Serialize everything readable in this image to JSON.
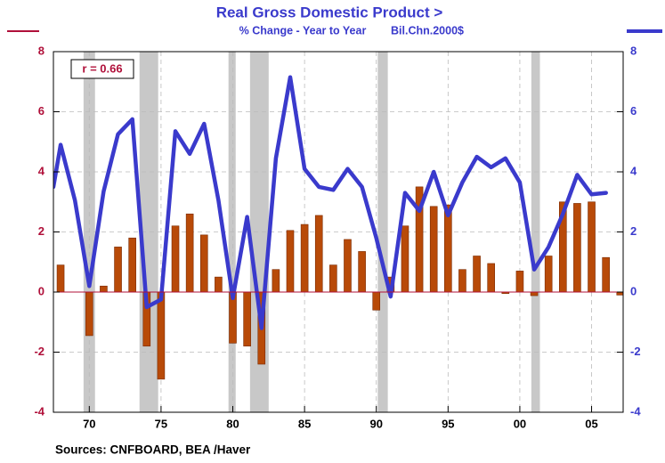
{
  "chart_data": {
    "type": "combo",
    "title": "Real Gross Domestic Product  >",
    "subtitle": [
      "% Change - Year to Year",
      "Bil.Chn.2000$"
    ],
    "annotation": "r = 0.66",
    "source": "Sources:  CNFBOARD, BEA /Haver",
    "xlim": [
      1967.5,
      2007.2
    ],
    "xticks": [
      {
        "value": 1970,
        "label": "70"
      },
      {
        "value": 1975,
        "label": "75"
      },
      {
        "value": 1980,
        "label": "80"
      },
      {
        "value": 1985,
        "label": "85"
      },
      {
        "value": 1990,
        "label": "90"
      },
      {
        "value": 1995,
        "label": "95"
      },
      {
        "value": 2000,
        "label": "00"
      },
      {
        "value": 2005,
        "label": "05"
      }
    ],
    "ylim": [
      -4,
      8
    ],
    "yticks": [
      -4,
      -2,
      0,
      2,
      4,
      6,
      8
    ],
    "y2lim": [
      -4,
      8
    ],
    "y2ticks": [
      -4,
      -2,
      0,
      2,
      4,
      6,
      8
    ],
    "grid": true,
    "shaded_periods": [
      [
        1969.6,
        1970.4
      ],
      [
        1973.5,
        1974.8
      ],
      [
        1979.7,
        1980.2
      ],
      [
        1981.2,
        1982.5
      ],
      [
        1990.1,
        1990.8
      ],
      [
        2000.8,
        2001.4
      ]
    ],
    "shade_color": "#c8c8c8",
    "series": [
      {
        "type": "bar",
        "axis": "y",
        "color": "#b84a08",
        "axis_color": "#b0103a",
        "x": [
          1968,
          1969,
          1970,
          1971,
          1972,
          1973,
          1974,
          1975,
          1976,
          1977,
          1978,
          1979,
          1980,
          1981,
          1982,
          1983,
          1984,
          1985,
          1986,
          1987,
          1988,
          1989,
          1990,
          1991,
          1992,
          1993,
          1994,
          1995,
          1996,
          1997,
          1998,
          1999,
          2000,
          2001,
          2002,
          2003,
          2004,
          2005,
          2006,
          2007
        ],
        "values": [
          0.9,
          0,
          -1.45,
          0.2,
          1.5,
          1.8,
          -1.8,
          -2.9,
          2.2,
          2.6,
          1.9,
          0.5,
          -1.7,
          -1.8,
          -2.4,
          0.75,
          2.05,
          2.25,
          2.55,
          0.9,
          1.75,
          1.35,
          -0.6,
          0.5,
          2.2,
          3.5,
          2.85,
          2.9,
          0.75,
          1.2,
          0.95,
          -0.05,
          0.7,
          -0.12,
          1.2,
          3.0,
          2.95,
          3.0,
          1.15,
          -0.1
        ]
      },
      {
        "type": "line",
        "axis": "y2",
        "color": "#3a3acc",
        "axis_color": "#3a3acc",
        "x": [
          1967.5,
          1968,
          1969,
          1970,
          1971,
          1972,
          1973,
          1974,
          1975,
          1976,
          1977,
          1978,
          1979,
          1980,
          1981,
          1982,
          1983,
          1984,
          1985,
          1986,
          1987,
          1988,
          1989,
          1990,
          1991,
          1992,
          1993,
          1994,
          1995,
          1996,
          1997,
          1998,
          1999,
          2000,
          2001,
          2002,
          2003,
          2004,
          2005,
          2006
        ],
        "values": [
          3.5,
          4.9,
          3.05,
          0.2,
          3.35,
          5.25,
          5.75,
          -0.5,
          -0.25,
          5.35,
          4.6,
          5.6,
          3.05,
          -0.2,
          2.5,
          -1.2,
          4.45,
          7.15,
          4.1,
          3.5,
          3.4,
          4.1,
          3.5,
          1.8,
          -0.15,
          3.3,
          2.7,
          4.0,
          2.55,
          3.65,
          4.5,
          4.15,
          4.45,
          3.65,
          0.75,
          1.5,
          2.6,
          3.9,
          3.25,
          3.3
        ]
      }
    ]
  }
}
